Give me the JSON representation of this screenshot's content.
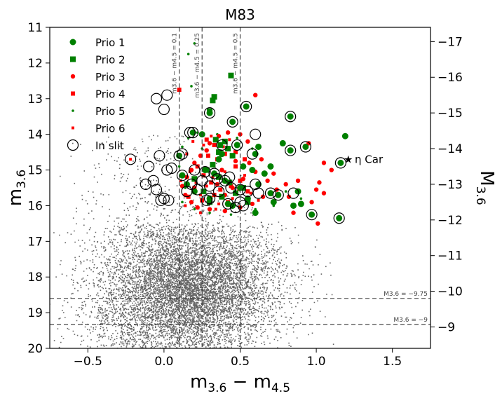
{
  "chart_data": {
    "type": "scatter",
    "title": "M83",
    "xlabel_main": "m",
    "xlabel_sub1": "3.6",
    "xlabel_mid": " − m",
    "xlabel_sub2": "4.5",
    "ylabel_main": "m",
    "ylabel_sub": "3.6",
    "y2label_main": "M",
    "y2label_sub": "3.6",
    "xlim": [
      -0.75,
      1.75
    ],
    "ylim": [
      20,
      11
    ],
    "y2lim": [
      -8.4,
      -17.4
    ],
    "xticks": [
      "−0.5",
      "0.0",
      "0.5",
      "1.0",
      "1.5"
    ],
    "xtick_values": [
      -0.5,
      0.0,
      0.5,
      1.0,
      1.5
    ],
    "yticks": [
      "11",
      "12",
      "13",
      "14",
      "15",
      "16",
      "17",
      "18",
      "19",
      "20"
    ],
    "ytick_values": [
      11,
      12,
      13,
      14,
      15,
      16,
      17,
      18,
      19,
      20
    ],
    "y2ticks": [
      "−9",
      "−10",
      "−11",
      "−12",
      "−13",
      "−14",
      "−15",
      "−16",
      "−17"
    ],
    "y2tick_values": [
      -9,
      -10,
      -11,
      -12,
      -13,
      -14,
      -15,
      -16,
      -17
    ],
    "vertical_lines": [
      {
        "x": 0.1,
        "label": "m3.6 − m4.5 = 0.1"
      },
      {
        "x": 0.25,
        "label": "m3.6 − m4.5 = 0.25"
      },
      {
        "x": 0.5,
        "label": "m3.6 − m4.5 = 0.5"
      }
    ],
    "horizontal_lines": [
      {
        "y": 18.6,
        "label": "M3.6 = −9.75"
      },
      {
        "y": 19.33,
        "label": "M3.6 = −9"
      }
    ],
    "annotation": {
      "x": 1.17,
      "y": 14.7,
      "text": "η Car"
    },
    "legend": {
      "position": "top-left",
      "entries": [
        {
          "label": "Prio 1",
          "marker": "circle",
          "color": "#008000"
        },
        {
          "label": "Prio 2",
          "marker": "square",
          "color": "#008000"
        },
        {
          "label": "Prio 3",
          "marker": "circle-small",
          "color": "#ff0000"
        },
        {
          "label": "Prio 4",
          "marker": "square-small",
          "color": "#ff0000"
        },
        {
          "label": "Prio 5",
          "marker": "dot",
          "color": "#008000"
        },
        {
          "label": "Prio 6",
          "marker": "dot-square",
          "color": "#ff0000"
        },
        {
          "label": "In slit",
          "marker": "open-circle",
          "color": "#000000"
        }
      ]
    },
    "background_cloud": {
      "description_color": "#000000",
      "n_points": 9000
    },
    "series": [
      {
        "name": "Prio 1",
        "color": "#008000",
        "marker": "circle",
        "points": [
          [
            0.54,
            13.22
          ],
          [
            0.83,
            13.5
          ],
          [
            1.19,
            14.05
          ],
          [
            0.62,
            14.35
          ],
          [
            0.83,
            14.45
          ],
          [
            0.93,
            14.35
          ],
          [
            0.78,
            14.25
          ],
          [
            1.16,
            14.8
          ],
          [
            1.15,
            16.35
          ],
          [
            0.97,
            16.25
          ],
          [
            0.85,
            16.0
          ],
          [
            0.75,
            15.7
          ],
          [
            0.7,
            15.65
          ],
          [
            0.62,
            15.4
          ],
          [
            0.58,
            15.0
          ],
          [
            0.48,
            14.3
          ],
          [
            0.45,
            13.65
          ],
          [
            0.3,
            13.4
          ],
          [
            0.36,
            14.7
          ],
          [
            0.33,
            15.1
          ],
          [
            0.4,
            15.3
          ],
          [
            0.5,
            15.5
          ],
          [
            0.55,
            15.8
          ],
          [
            0.42,
            15.95
          ],
          [
            0.3,
            15.8
          ],
          [
            0.2,
            15.6
          ],
          [
            0.15,
            15.4
          ],
          [
            0.27,
            15.0
          ],
          [
            0.6,
            14.55
          ],
          [
            0.7,
            14.9
          ],
          [
            0.88,
            15.6
          ],
          [
            0.9,
            15.95
          ],
          [
            0.66,
            15.1
          ],
          [
            0.52,
            14.9
          ],
          [
            0.38,
            14.55
          ],
          [
            0.25,
            14.0
          ],
          [
            0.19,
            13.95
          ],
          [
            0.1,
            14.6
          ],
          [
            0.12,
            15.15
          ],
          [
            0.45,
            16.0
          ],
          [
            0.6,
            16.2
          ],
          [
            0.72,
            15.9
          ]
        ]
      },
      {
        "name": "Prio 2",
        "color": "#008000",
        "marker": "square",
        "points": [
          [
            0.44,
            12.35
          ],
          [
            0.33,
            12.95
          ],
          [
            0.32,
            13.05
          ],
          [
            0.3,
            13.35
          ],
          [
            0.34,
            14.15
          ],
          [
            0.37,
            14.3
          ],
          [
            0.4,
            14.2
          ],
          [
            0.42,
            14.4
          ],
          [
            0.45,
            14.6
          ],
          [
            0.36,
            14.5
          ],
          [
            0.32,
            14.85
          ],
          [
            0.28,
            15.0
          ],
          [
            0.36,
            15.2
          ],
          [
            0.43,
            15.35
          ],
          [
            0.52,
            15.5
          ],
          [
            0.2,
            15.25
          ],
          [
            0.26,
            15.6
          ],
          [
            0.3,
            15.9
          ],
          [
            0.38,
            15.75
          ],
          [
            0.47,
            15.65
          ],
          [
            0.55,
            15.9
          ]
        ]
      },
      {
        "name": "Prio 3",
        "color": "#ff0000",
        "marker": "circle-small",
        "points": [
          [
            0.6,
            12.9
          ],
          [
            0.95,
            14.25
          ],
          [
            1.05,
            14.8
          ],
          [
            1.1,
            15.0
          ],
          [
            1.02,
            15.35
          ],
          [
            1.0,
            15.55
          ],
          [
            1.05,
            15.65
          ],
          [
            0.97,
            15.9
          ],
          [
            1.01,
            16.5
          ],
          [
            0.85,
            16.2
          ],
          [
            0.8,
            15.4
          ],
          [
            0.72,
            15.1
          ],
          [
            0.64,
            14.7
          ],
          [
            0.55,
            14.2
          ],
          [
            0.5,
            14.0
          ],
          [
            0.42,
            13.95
          ],
          [
            0.36,
            14.05
          ],
          [
            0.3,
            14.25
          ],
          [
            0.28,
            14.45
          ],
          [
            0.24,
            14.6
          ],
          [
            0.2,
            14.8
          ],
          [
            0.18,
            15.0
          ],
          [
            0.15,
            15.2
          ],
          [
            0.12,
            15.45
          ],
          [
            0.14,
            15.7
          ],
          [
            0.18,
            15.9
          ],
          [
            0.22,
            16.05
          ],
          [
            0.3,
            16.1
          ],
          [
            0.4,
            16.15
          ],
          [
            0.5,
            16.05
          ],
          [
            0.58,
            15.95
          ],
          [
            0.65,
            15.75
          ],
          [
            0.74,
            15.55
          ],
          [
            0.82,
            15.75
          ],
          [
            0.88,
            15.3
          ],
          [
            0.68,
            15.3
          ],
          [
            0.6,
            15.05
          ],
          [
            0.56,
            14.8
          ],
          [
            0.47,
            14.75
          ],
          [
            0.38,
            15.0
          ],
          [
            0.35,
            15.4
          ],
          [
            0.45,
            15.5
          ],
          [
            0.52,
            15.25
          ],
          [
            0.4,
            15.7
          ]
        ]
      },
      {
        "name": "Prio 4",
        "color": "#ff0000",
        "marker": "square-small",
        "points": [
          [
            0.1,
            12.75
          ],
          [
            0.28,
            14.15
          ],
          [
            0.33,
            14.3
          ],
          [
            0.4,
            14.55
          ],
          [
            0.47,
            14.5
          ],
          [
            0.22,
            14.9
          ],
          [
            0.26,
            15.15
          ],
          [
            0.31,
            15.35
          ],
          [
            0.37,
            15.55
          ],
          [
            0.44,
            15.45
          ],
          [
            0.5,
            15.3
          ],
          [
            0.55,
            15.6
          ],
          [
            0.2,
            15.5
          ],
          [
            0.16,
            15.75
          ],
          [
            0.25,
            15.85
          ],
          [
            0.33,
            15.7
          ],
          [
            0.42,
            15.9
          ],
          [
            0.47,
            14.9
          ],
          [
            0.53,
            14.7
          ],
          [
            0.35,
            14.7
          ],
          [
            0.29,
            14.6
          ]
        ]
      },
      {
        "name": "Prio 5",
        "color": "#008000",
        "marker": "dot",
        "points": [
          [
            0.16,
            11.75
          ],
          [
            0.2,
            11.45
          ],
          [
            0.18,
            12.65
          ],
          [
            0.22,
            13.95
          ],
          [
            0.16,
            14.1
          ],
          [
            0.12,
            14.35
          ],
          [
            0.1,
            14.9
          ],
          [
            0.14,
            15.5
          ],
          [
            0.12,
            15.9
          ],
          [
            0.2,
            16.1
          ],
          [
            0.3,
            16.2
          ],
          [
            0.44,
            16.25
          ],
          [
            0.6,
            16.1
          ],
          [
            0.72,
            16.0
          ],
          [
            0.8,
            15.6
          ],
          [
            0.9,
            15.8
          ],
          [
            0.25,
            14.4
          ],
          [
            0.35,
            14.0
          ],
          [
            0.48,
            14.1
          ],
          [
            0.58,
            14.4
          ]
        ]
      },
      {
        "name": "Prio 6",
        "color": "#ff0000",
        "marker": "dot-square",
        "points": [
          [
            -0.22,
            14.7
          ],
          [
            0.15,
            14.55
          ],
          [
            0.11,
            15.3
          ],
          [
            0.17,
            15.05
          ],
          [
            0.21,
            15.35
          ],
          [
            0.24,
            15.7
          ],
          [
            0.28,
            15.45
          ],
          [
            0.32,
            15.2
          ],
          [
            0.36,
            15.95
          ],
          [
            0.4,
            15.05
          ],
          [
            0.45,
            15.8
          ],
          [
            0.49,
            15.55
          ],
          [
            0.53,
            15.15
          ],
          [
            0.57,
            15.65
          ],
          [
            0.62,
            15.85
          ],
          [
            0.19,
            14.2
          ],
          [
            0.26,
            14.3
          ],
          [
            0.31,
            14.05
          ],
          [
            0.39,
            14.35
          ],
          [
            0.43,
            14.15
          ],
          [
            0.14,
            16.0
          ],
          [
            0.24,
            16.2
          ],
          [
            0.34,
            16.1
          ]
        ]
      },
      {
        "name": "In slit",
        "color": "#000000",
        "marker": "open-circle",
        "points": [
          [
            0.54,
            13.22
          ],
          [
            0.83,
            13.5
          ],
          [
            0.3,
            13.4
          ],
          [
            0.45,
            13.65
          ],
          [
            0.19,
            13.95
          ],
          [
            0.6,
            14.0
          ],
          [
            0.83,
            14.45
          ],
          [
            0.93,
            14.35
          ],
          [
            1.16,
            14.8
          ],
          [
            0.1,
            14.6
          ],
          [
            0.38,
            14.3
          ],
          [
            0.48,
            14.3
          ],
          [
            0.58,
            14.55
          ],
          [
            0.12,
            15.15
          ],
          [
            0.2,
            15.0
          ],
          [
            0.27,
            15.05
          ],
          [
            0.33,
            15.1
          ],
          [
            0.4,
            15.3
          ],
          [
            0.3,
            15.45
          ],
          [
            0.22,
            15.55
          ],
          [
            0.36,
            15.6
          ],
          [
            0.44,
            15.5
          ],
          [
            0.5,
            15.55
          ],
          [
            0.55,
            15.6
          ],
          [
            0.25,
            15.3
          ],
          [
            0.18,
            15.4
          ],
          [
            0.15,
            15.6
          ],
          [
            0.3,
            15.8
          ],
          [
            0.42,
            15.95
          ],
          [
            0.5,
            15.9
          ],
          [
            0.62,
            15.65
          ],
          [
            0.7,
            15.65
          ],
          [
            0.75,
            15.7
          ],
          [
            0.85,
            15.65
          ],
          [
            0.97,
            16.25
          ],
          [
            1.15,
            16.35
          ],
          [
            0.6,
            15.4
          ],
          [
            0.47,
            16.05
          ],
          [
            0.52,
            16.0
          ],
          [
            0.35,
            15.25
          ],
          [
            0.28,
            15.85
          ],
          [
            0.43,
            15.2
          ],
          [
            -0.02,
            15.85
          ],
          [
            0.0,
            15.8
          ],
          [
            -0.05,
            15.55
          ],
          [
            -0.07,
            15.3
          ],
          [
            0.02,
            15.0
          ],
          [
            -0.1,
            14.9
          ],
          [
            0.05,
            14.95
          ],
          [
            -0.03,
            14.6
          ],
          [
            0.0,
            13.3
          ],
          [
            -0.05,
            13.0
          ],
          [
            0.02,
            12.9
          ],
          [
            -0.22,
            14.7
          ],
          [
            0.17,
            13.95
          ],
          [
            0.12,
            14.55
          ],
          [
            0.03,
            15.85
          ],
          [
            -0.12,
            15.4
          ]
        ]
      }
    ]
  }
}
